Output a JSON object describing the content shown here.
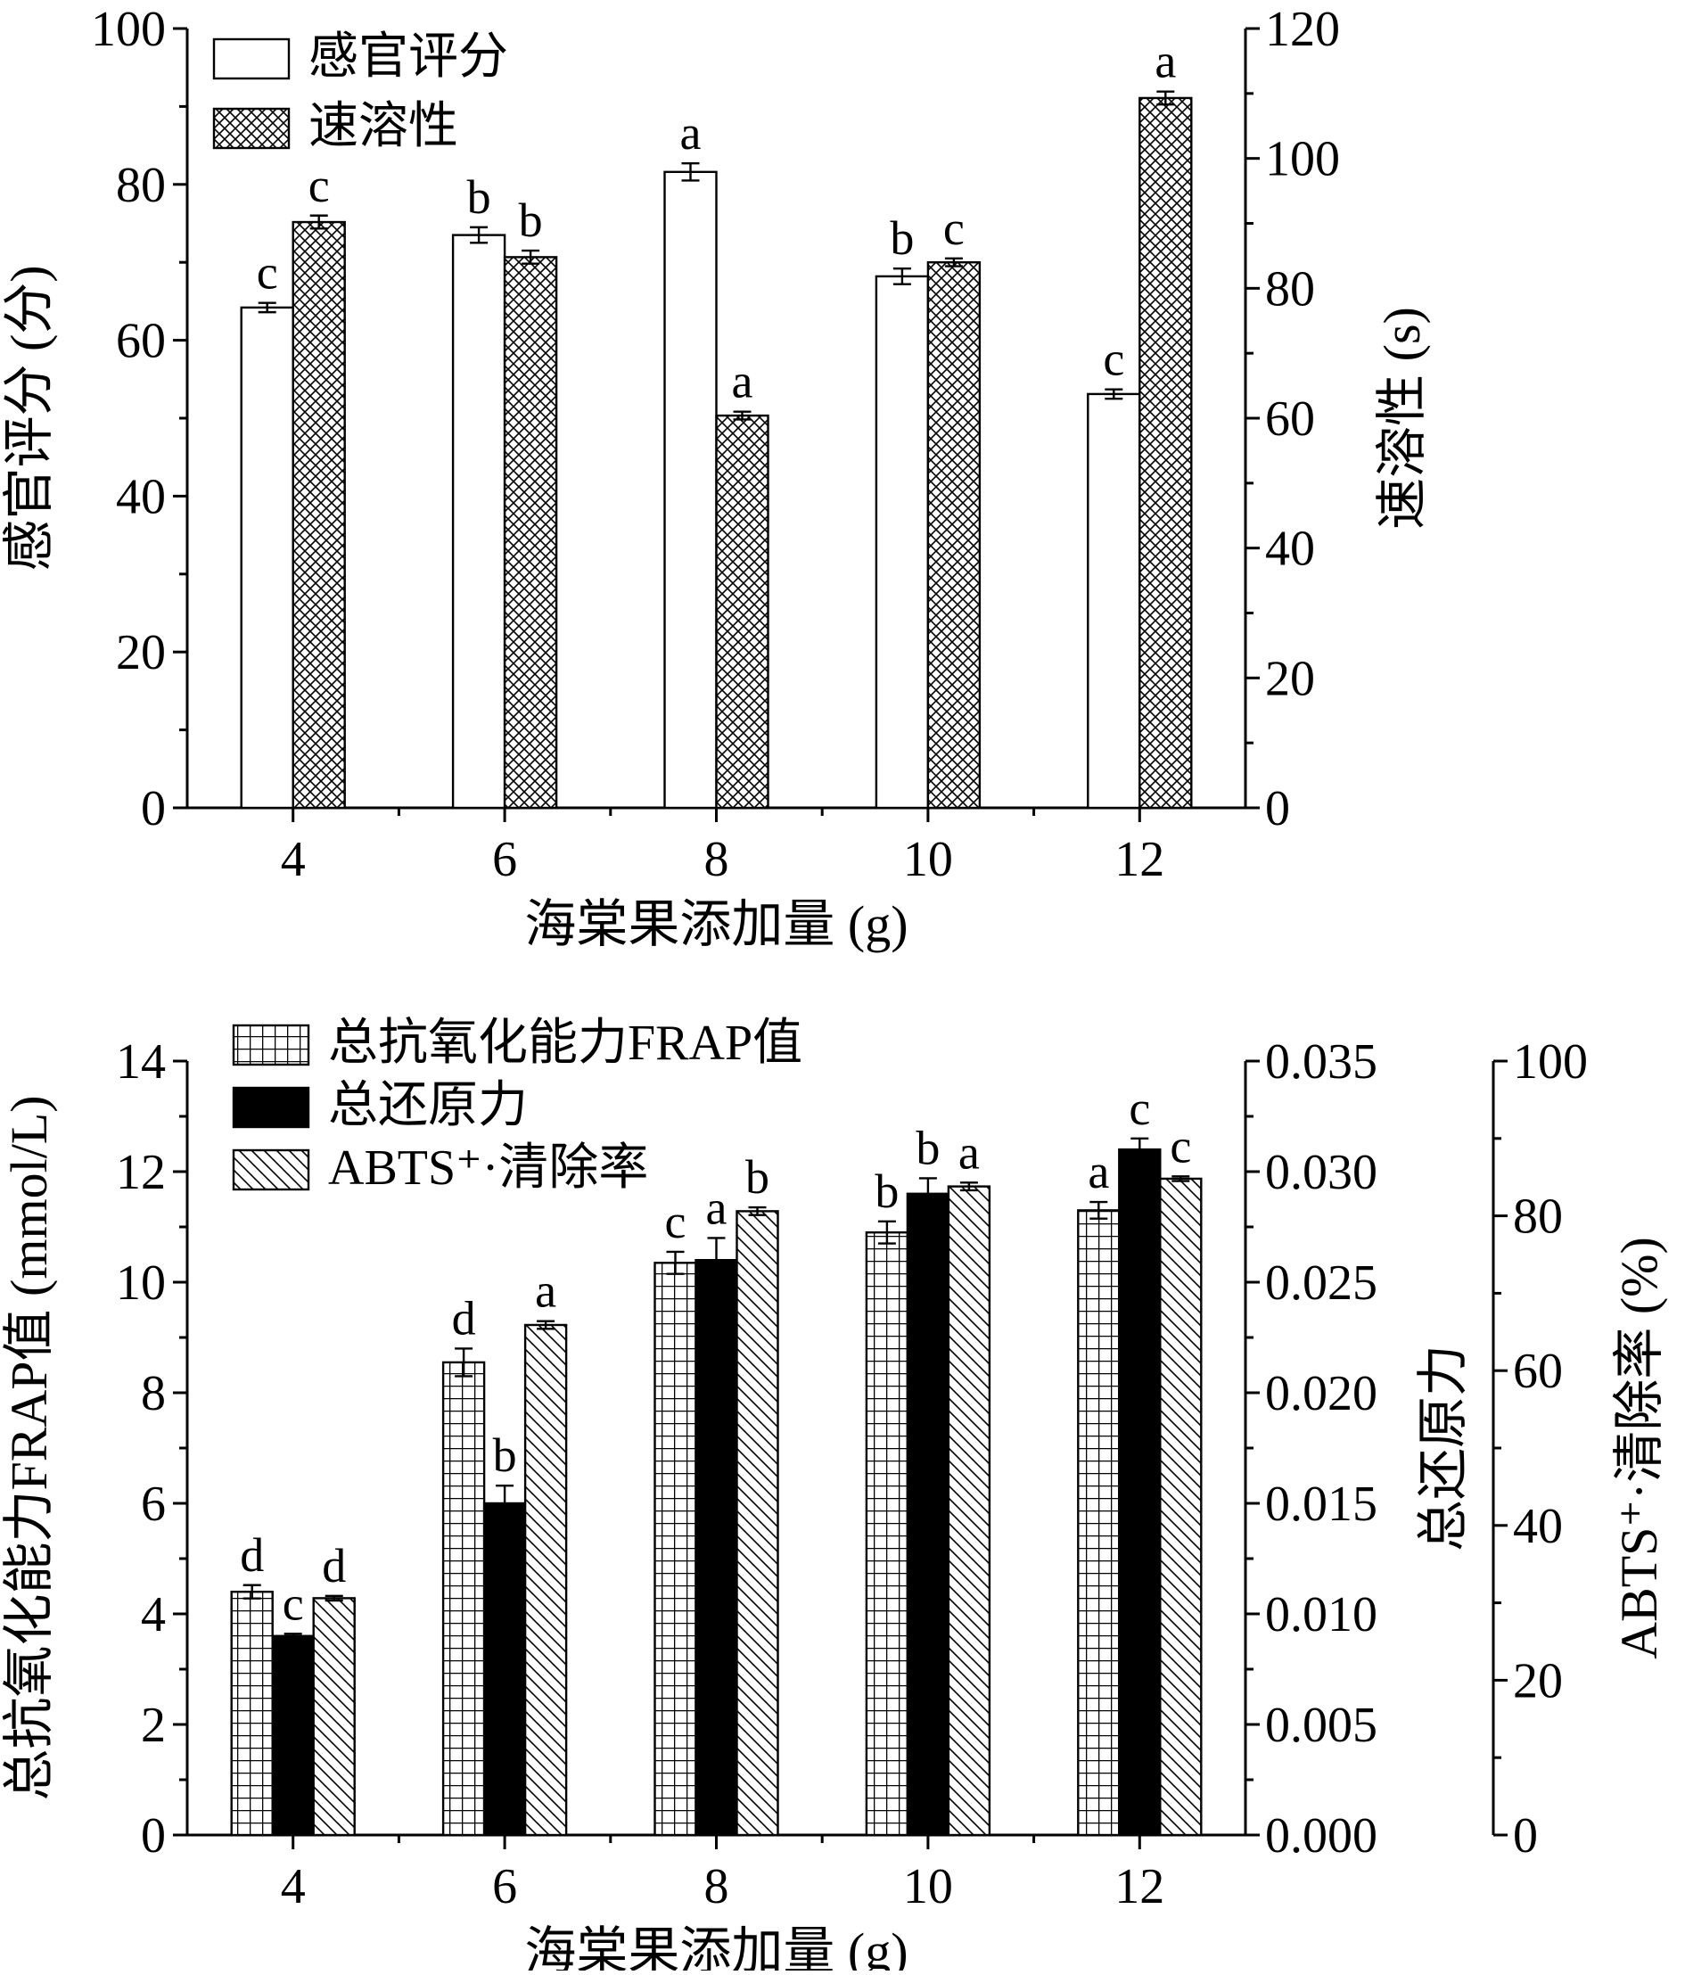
{
  "chart_data": [
    {
      "type": "bar",
      "xlabel": "海棠果添加量 (g)",
      "categories": [
        "4",
        "6",
        "8",
        "10",
        "12"
      ],
      "axes": {
        "left": {
          "label": "感官评分 (分)",
          "range": [
            0,
            100
          ],
          "ticks": [
            "0",
            "20",
            "40",
            "60",
            "80",
            "100"
          ]
        },
        "right": {
          "label": "速溶性 (s)",
          "range": [
            0,
            120
          ],
          "ticks": [
            "0",
            "20",
            "40",
            "60",
            "80",
            "100",
            "120"
          ]
        }
      },
      "legend_position": "top-left",
      "series": [
        {
          "name": "感官评分",
          "axis": "left",
          "pattern": "white",
          "values": [
            64.2,
            73.5,
            81.6,
            68.2,
            53.1
          ],
          "errors": [
            0.6,
            1.0,
            1.1,
            1.0,
            0.6
          ],
          "labels": [
            "c",
            "b",
            "a",
            "b",
            "c"
          ]
        },
        {
          "name": "速溶性",
          "axis": "right",
          "pattern": "crosshatch",
          "values": [
            90.2,
            84.8,
            60.4,
            84.0,
            109.3
          ],
          "errors": [
            1.0,
            1.0,
            0.6,
            0.6,
            1.0
          ],
          "labels": [
            "c",
            "b",
            "a",
            "c",
            "a"
          ]
        }
      ]
    },
    {
      "type": "bar",
      "xlabel": "海棠果添加量 (g)",
      "categories": [
        "4",
        "6",
        "8",
        "10",
        "12"
      ],
      "axes": {
        "left": {
          "label": "总抗氧化能力FRAP值 (mmol/L)",
          "range": [
            0,
            14
          ],
          "ticks": [
            "0",
            "2",
            "4",
            "6",
            "8",
            "10",
            "12",
            "14"
          ]
        },
        "right1": {
          "label": "总还原力",
          "range": [
            0,
            0.035
          ],
          "ticks": [
            "0.000",
            "0.005",
            "0.010",
            "0.015",
            "0.020",
            "0.025",
            "0.030",
            "0.035"
          ]
        },
        "right2": {
          "label": "ABTS⁺·清除率 (%)",
          "range": [
            0,
            100
          ],
          "ticks": [
            "0",
            "20",
            "40",
            "60",
            "80",
            "100"
          ]
        }
      },
      "legend_position": "top-left",
      "series": [
        {
          "name": "总抗氧化能力FRAP值",
          "axis": "left",
          "pattern": "grid",
          "values": [
            4.4,
            8.55,
            10.35,
            10.9,
            11.3
          ],
          "errors": [
            0.12,
            0.25,
            0.2,
            0.2,
            0.15
          ],
          "labels": [
            "d",
            "d",
            "c",
            "b",
            "a"
          ]
        },
        {
          "name": "总还原力",
          "axis": "right1",
          "pattern": "black",
          "values": [
            0.009,
            0.015,
            0.026,
            0.029,
            0.031
          ],
          "errors": [
            0.0001,
            0.0008,
            0.001,
            0.0007,
            0.0005
          ],
          "labels": [
            "c",
            "b",
            "a",
            "b",
            "c"
          ]
        },
        {
          "name": "ABTS⁺·清除率",
          "axis": "right2",
          "pattern": "diagonal",
          "values": [
            30.6,
            65.9,
            80.6,
            83.8,
            84.8
          ],
          "errors": [
            0.3,
            0.5,
            0.5,
            0.5,
            0.3
          ],
          "labels": [
            "d",
            "a",
            "b",
            "a",
            "c"
          ]
        }
      ]
    }
  ]
}
